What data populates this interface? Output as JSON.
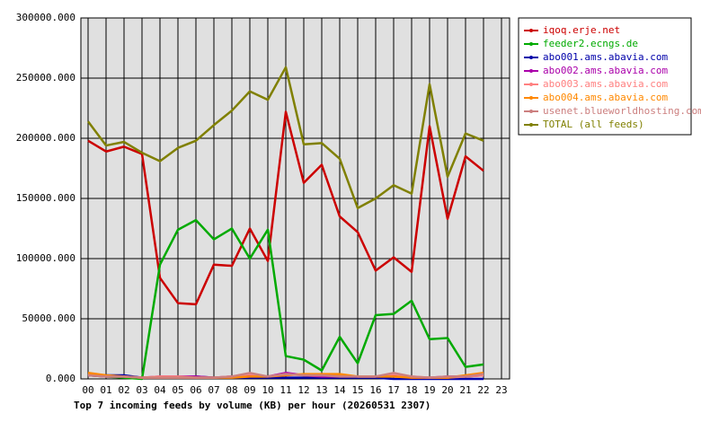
{
  "chart_data": {
    "type": "line",
    "xlabel": "Top 7 incoming feeds by volume (KB) per hour (20260531 2307)",
    "categories": [
      "00",
      "01",
      "02",
      "03",
      "04",
      "05",
      "06",
      "07",
      "08",
      "09",
      "10",
      "11",
      "12",
      "13",
      "14",
      "15",
      "16",
      "17",
      "18",
      "19",
      "20",
      "21",
      "22",
      "23"
    ],
    "ylim": [
      0,
      300000
    ],
    "yticks": [
      {
        "value": 0,
        "label": "0.000"
      },
      {
        "value": 50000,
        "label": "50000.000"
      },
      {
        "value": 100000,
        "label": "100000.000"
      },
      {
        "value": 150000,
        "label": "150000.000"
      },
      {
        "value": 200000,
        "label": "200000.000"
      },
      {
        "value": 250000,
        "label": "250000.000"
      },
      {
        "value": 300000,
        "label": "300000.000"
      }
    ],
    "grid": true,
    "legend": "right",
    "series": [
      {
        "name": "iqoq.erje.net",
        "color": "#cc0000",
        "values": [
          198000,
          189000,
          193000,
          187000,
          84000,
          63000,
          62000,
          95000,
          94000,
          125000,
          98000,
          222000,
          163000,
          178000,
          135000,
          122000,
          90000,
          101000,
          89000,
          210000,
          133000,
          185000,
          173000,
          null
        ]
      },
      {
        "name": "feeder2.ecngs.de",
        "color": "#00aa00",
        "values": [
          3000,
          2000,
          1000,
          0,
          95000,
          124000,
          132000,
          116000,
          125000,
          100000,
          124000,
          19000,
          16000,
          7000,
          35000,
          13000,
          53000,
          54000,
          65000,
          33000,
          34000,
          10000,
          12000,
          null
        ]
      },
      {
        "name": "abo001.ams.abavia.com",
        "color": "#0000aa",
        "values": [
          4000,
          3000,
          3000,
          1000,
          1000,
          1000,
          2000,
          1000,
          1000,
          1000,
          1000,
          1000,
          1000,
          1000,
          1000,
          1000,
          1000,
          0,
          0,
          0,
          0,
          0,
          0,
          null
        ]
      },
      {
        "name": "abo002.ams.abavia.com",
        "color": "#aa00aa",
        "values": [
          3000,
          2000,
          2000,
          1000,
          2000,
          2000,
          2000,
          1000,
          2000,
          3000,
          2000,
          5000,
          3000,
          2000,
          2000,
          2000,
          2000,
          3000,
          1000,
          1000,
          2000,
          2000,
          3000,
          null
        ]
      },
      {
        "name": "abo003.ams.abavia.com",
        "color": "#ff8080",
        "values": [
          4000,
          2000,
          2000,
          1000,
          2000,
          2000,
          1000,
          1000,
          2000,
          4000,
          2000,
          4000,
          3000,
          3000,
          3000,
          2000,
          2000,
          4000,
          2000,
          1000,
          1000,
          2000,
          3000,
          null
        ]
      },
      {
        "name": "abo004.ams.abavia.com",
        "color": "#ff8800",
        "values": [
          5000,
          3000,
          2000,
          1000,
          1000,
          1000,
          1000,
          1000,
          1000,
          2000,
          2000,
          3000,
          4000,
          4000,
          4000,
          2000,
          2000,
          2000,
          1000,
          1000,
          1000,
          3000,
          5000,
          null
        ]
      },
      {
        "name": "usenet.blueworldhosting.com",
        "color": "#cc7f7f",
        "values": [
          3000,
          2000,
          2000,
          1000,
          1000,
          1000,
          1000,
          1000,
          2000,
          5000,
          2000,
          4000,
          3000,
          3000,
          2000,
          2000,
          2000,
          5000,
          2000,
          1000,
          2000,
          2000,
          4000,
          null
        ]
      },
      {
        "name": "TOTAL (all feeds)",
        "color": "#808000",
        "values": [
          214000,
          194000,
          197000,
          188000,
          181000,
          192000,
          198000,
          211000,
          223000,
          239000,
          232000,
          259000,
          195000,
          196000,
          183000,
          142000,
          150000,
          161000,
          154000,
          245000,
          168000,
          204000,
          198000,
          null
        ]
      }
    ]
  }
}
